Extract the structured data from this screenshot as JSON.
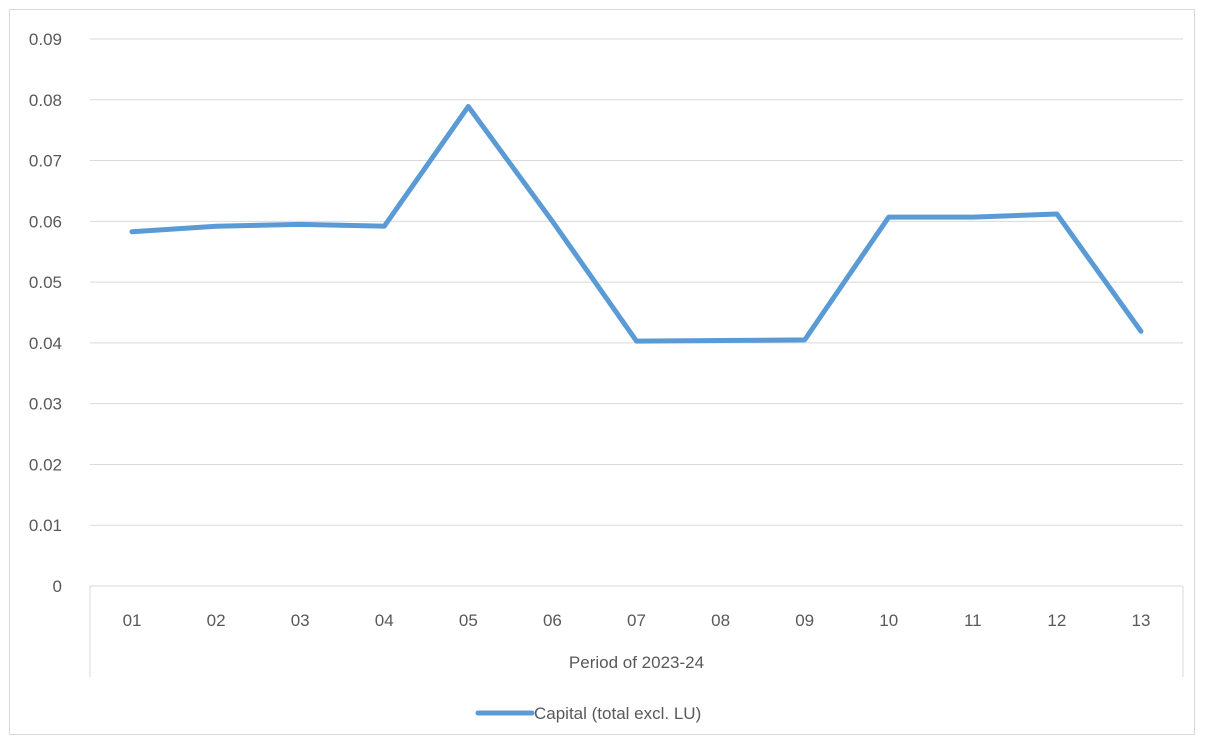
{
  "chart_data": {
    "type": "line",
    "categories": [
      "01",
      "02",
      "03",
      "04",
      "05",
      "06",
      "07",
      "08",
      "09",
      "10",
      "11",
      "12",
      "13"
    ],
    "series": [
      {
        "name": "Capital (total excl. LU)",
        "color": "#5b9bd5",
        "values": [
          0.0583,
          0.0592,
          0.0595,
          0.0592,
          0.0789,
          0.06,
          0.0403,
          0.0404,
          0.0405,
          0.0607,
          0.0607,
          0.0612,
          0.0419
        ]
      }
    ],
    "title": "",
    "xlabel": "Period of 2023-24",
    "ylabel": "",
    "ylim": [
      0,
      0.09
    ],
    "yticks": [
      "0",
      "0.01",
      "0.02",
      "0.03",
      "0.04",
      "0.05",
      "0.06",
      "0.07",
      "0.08",
      "0.09"
    ],
    "grid": true,
    "legend_position": "bottom",
    "colors": {
      "gridline": "#d9d9d9",
      "text": "#595959",
      "line": "#5b9bd5"
    }
  }
}
